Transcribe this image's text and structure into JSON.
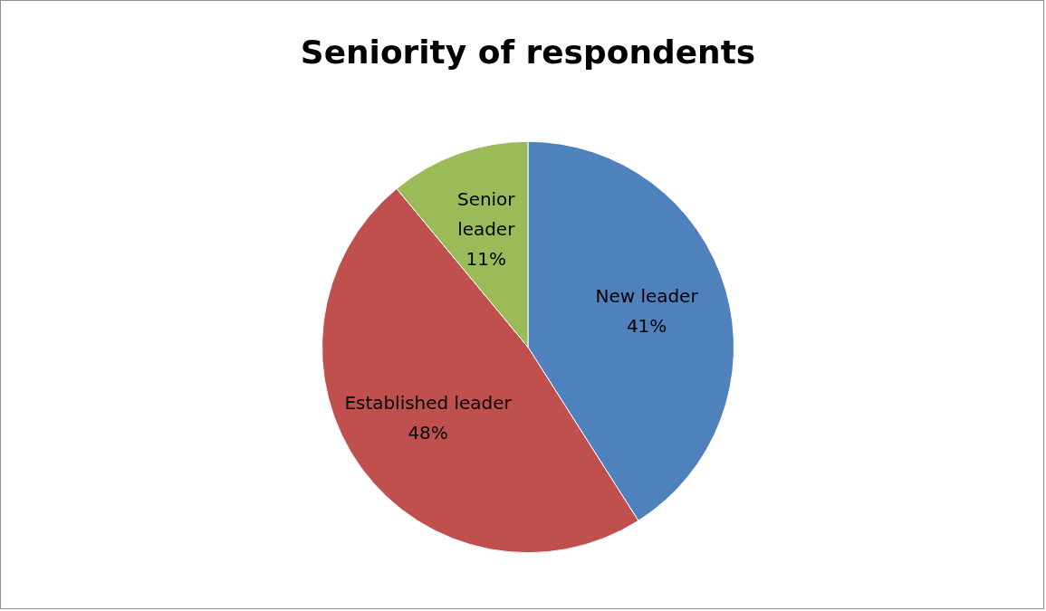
{
  "chart_data": {
    "type": "pie",
    "title": "Seniority of respondents",
    "categories": [
      "New leader",
      "Established leader",
      "Senior leader"
    ],
    "values": [
      41,
      48,
      11
    ],
    "colors": [
      "#4f81bd",
      "#c0504d",
      "#9bbb59"
    ],
    "value_labels": [
      "41%",
      "48%",
      "11%"
    ],
    "legend": false
  }
}
